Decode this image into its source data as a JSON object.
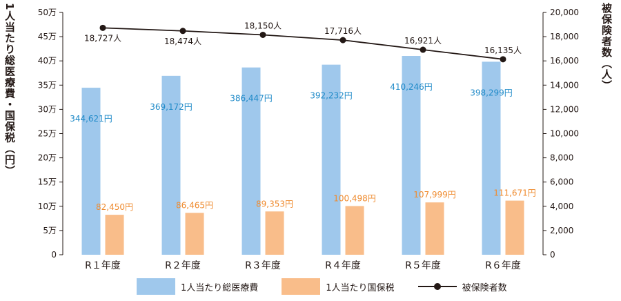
{
  "chart_data": {
    "type": "bar+line",
    "categories": [
      "R１年度",
      "R２年度",
      "R３年度",
      "R４年度",
      "R５年度",
      "R６年度"
    ],
    "series": [
      {
        "name": "1人当たり総医療費",
        "axis": "left",
        "color": "#9fc8ec",
        "label_color": "#1f8ac8",
        "values": [
          344621,
          369172,
          386447,
          392232,
          410246,
          398299
        ],
        "labels": [
          "344,621円",
          "369,172円",
          "386,447円",
          "392,232円",
          "410,246円",
          "398,299円"
        ]
      },
      {
        "name": "1人当たり国保税",
        "axis": "left",
        "color": "#f9bd8a",
        "label_color": "#ef8b2f",
        "values": [
          82450,
          86465,
          89353,
          100498,
          107999,
          111671
        ],
        "labels": [
          "82,450円",
          "86,465円",
          "89,353円",
          "100,498円",
          "107,999円",
          "111,671円"
        ]
      },
      {
        "name": "被保険者数",
        "axis": "right",
        "type": "line",
        "color": "#231815",
        "values": [
          18727,
          18474,
          18150,
          17716,
          16921,
          16135
        ],
        "labels": [
          "18,727人",
          "18,474人",
          "18,150人",
          "17,716人",
          "16,921人",
          "16,135人"
        ]
      }
    ],
    "ylabel_left": "1人当たり総医療費・国保税（円）",
    "ylabel_right": "被保険者数（人）",
    "ylim_left": [
      0,
      500000
    ],
    "ylim_right": [
      0,
      20000
    ],
    "yticks_left": [
      {
        "value": 500000,
        "label": "50万"
      },
      {
        "value": 450000,
        "label": "45万"
      },
      {
        "value": 400000,
        "label": "40万"
      },
      {
        "value": 350000,
        "label": "35万"
      },
      {
        "value": 300000,
        "label": "30万"
      },
      {
        "value": 250000,
        "label": "25万"
      },
      {
        "value": 200000,
        "label": "20万"
      },
      {
        "value": 150000,
        "label": "15万"
      },
      {
        "value": 100000,
        "label": "10万"
      },
      {
        "value": 50000,
        "label": "5万"
      },
      {
        "value": 0,
        "label": "0"
      }
    ],
    "yticks_right": [
      {
        "value": 20000,
        "label": "20,000"
      },
      {
        "value": 18000,
        "label": "18,000"
      },
      {
        "value": 16000,
        "label": "16,000"
      },
      {
        "value": 14000,
        "label": "14,000"
      },
      {
        "value": 12000,
        "label": "12,000"
      },
      {
        "value": 10000,
        "label": "10,000"
      },
      {
        "value": 8000,
        "label": "8,000"
      },
      {
        "value": 6000,
        "label": "6,000"
      },
      {
        "value": 4000,
        "label": "4,000"
      },
      {
        "value": 2000,
        "label": "2,000"
      },
      {
        "value": 0,
        "label": "0"
      }
    ],
    "legend": {
      "position": "bottom-center"
    },
    "grid": false
  }
}
